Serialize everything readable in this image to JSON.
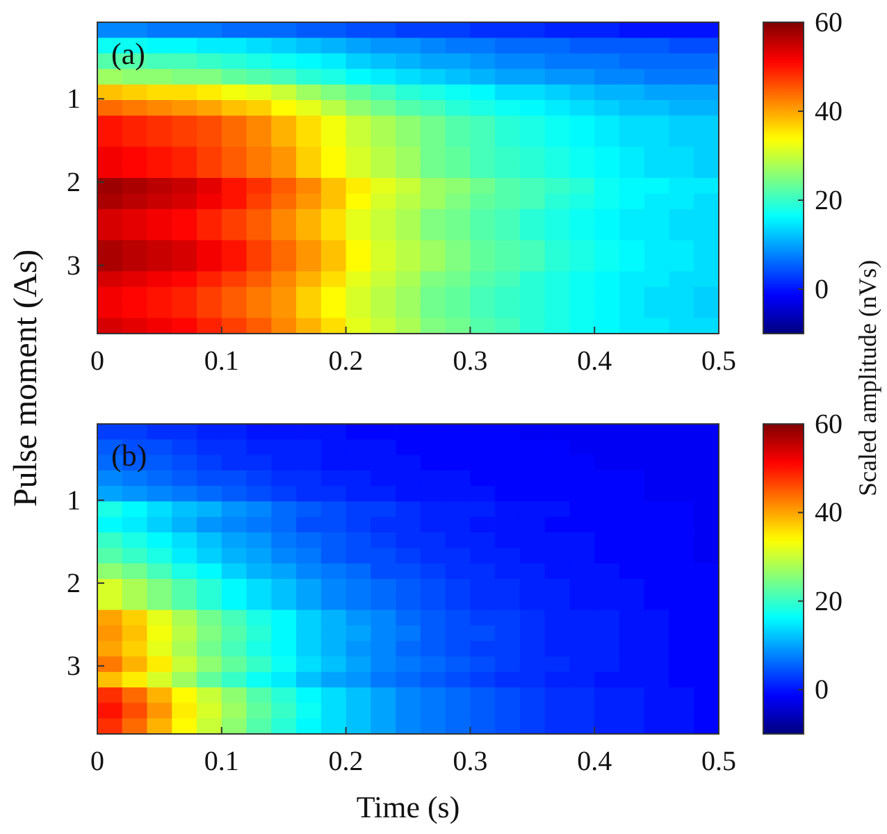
{
  "chart_data": [
    {
      "type": "heatmap",
      "ylabel": "Pulse moment (As)",
      "clabel": "Scaled amplitude (nVs)",
      "annotations": [
        "(a)"
      ],
      "xlim": [
        0,
        0.5
      ],
      "xticks": [
        0,
        0.1,
        0.2,
        0.3,
        0.4,
        0.5
      ],
      "ylim": [
        3.82,
        0.08
      ],
      "yticks": [
        1,
        2,
        3
      ],
      "clim": [
        -10,
        60
      ],
      "cticks": [
        0,
        20,
        40,
        60
      ],
      "cells": [
        [
          8,
          8,
          7,
          7,
          7,
          6,
          6,
          6,
          5,
          5,
          4,
          4,
          3,
          3,
          3,
          2,
          2,
          2,
          1,
          1,
          1,
          0,
          0,
          0,
          0
        ],
        [
          17,
          17,
          16,
          16,
          15,
          15,
          14,
          13,
          12,
          11,
          10,
          9,
          9,
          8,
          7,
          7,
          6,
          6,
          6,
          5,
          5,
          5,
          5,
          4,
          4
        ],
        [
          22,
          22,
          21,
          21,
          20,
          19,
          18,
          17,
          16,
          15,
          13,
          12,
          11,
          10,
          10,
          9,
          8,
          8,
          7,
          7,
          7,
          6,
          6,
          6,
          6
        ],
        [
          27,
          26,
          26,
          25,
          25,
          23,
          22,
          21,
          19,
          18,
          16,
          15,
          14,
          13,
          12,
          11,
          10,
          10,
          9,
          9,
          8,
          8,
          7,
          7,
          7
        ],
        [
          38,
          37,
          36,
          36,
          35,
          33,
          32,
          30,
          27,
          25,
          23,
          21,
          19,
          18,
          17,
          16,
          14,
          14,
          13,
          12,
          11,
          11,
          10,
          10,
          10
        ],
        [
          44,
          43,
          42,
          41,
          40,
          38,
          37,
          34,
          32,
          29,
          26,
          24,
          22,
          21,
          19,
          18,
          17,
          16,
          15,
          14,
          13,
          12,
          12,
          11,
          11
        ],
        [
          50,
          49,
          48,
          47,
          46,
          44,
          42,
          39,
          36,
          33,
          30,
          28,
          26,
          24,
          22,
          21,
          19,
          18,
          17,
          16,
          15,
          14,
          14,
          13,
          13
        ],
        [
          50,
          49,
          48,
          47,
          46,
          44,
          42,
          39,
          36,
          33,
          30,
          28,
          26,
          24,
          22,
          21,
          19,
          18,
          17,
          16,
          15,
          14,
          14,
          13,
          13
        ],
        [
          52,
          51,
          50,
          49,
          47,
          45,
          43,
          41,
          37,
          34,
          31,
          29,
          27,
          24,
          23,
          21,
          20,
          19,
          18,
          17,
          16,
          15,
          14,
          14,
          13
        ],
        [
          52,
          51,
          50,
          49,
          47,
          45,
          43,
          41,
          37,
          34,
          31,
          29,
          27,
          24,
          23,
          21,
          20,
          19,
          18,
          17,
          16,
          15,
          14,
          14,
          13
        ],
        [
          58,
          57,
          56,
          55,
          53,
          50,
          48,
          45,
          42,
          38,
          35,
          32,
          30,
          27,
          26,
          24,
          22,
          21,
          20,
          19,
          17,
          16,
          16,
          15,
          15
        ],
        [
          57,
          56,
          55,
          54,
          52,
          50,
          47,
          44,
          41,
          38,
          34,
          31,
          29,
          27,
          25,
          23,
          22,
          21,
          19,
          18,
          17,
          16,
          15,
          15,
          14
        ],
        [
          54,
          53,
          52,
          51,
          49,
          47,
          45,
          42,
          39,
          36,
          32,
          30,
          28,
          25,
          24,
          22,
          21,
          19,
          18,
          17,
          16,
          15,
          15,
          14,
          14
        ],
        [
          54,
          53,
          52,
          51,
          49,
          47,
          45,
          42,
          39,
          36,
          32,
          30,
          28,
          25,
          24,
          22,
          21,
          19,
          18,
          17,
          16,
          15,
          15,
          14,
          14
        ],
        [
          57,
          56,
          55,
          54,
          52,
          50,
          47,
          44,
          41,
          38,
          34,
          31,
          29,
          27,
          25,
          23,
          22,
          21,
          19,
          18,
          17,
          16,
          15,
          15,
          14
        ],
        [
          57,
          56,
          55,
          54,
          52,
          50,
          47,
          44,
          41,
          38,
          34,
          31,
          29,
          27,
          25,
          23,
          22,
          21,
          19,
          18,
          17,
          16,
          15,
          15,
          14
        ],
        [
          54,
          53,
          52,
          51,
          49,
          47,
          45,
          42,
          39,
          36,
          32,
          30,
          28,
          25,
          24,
          22,
          21,
          19,
          18,
          17,
          16,
          15,
          15,
          14,
          14
        ],
        [
          52,
          51,
          50,
          49,
          47,
          45,
          43,
          41,
          37,
          34,
          31,
          29,
          27,
          24,
          23,
          21,
          20,
          19,
          18,
          17,
          16,
          15,
          14,
          14,
          13
        ],
        [
          52,
          51,
          50,
          49,
          47,
          45,
          43,
          41,
          37,
          34,
          31,
          29,
          27,
          24,
          23,
          21,
          20,
          19,
          18,
          17,
          16,
          15,
          14,
          14,
          13
        ],
        [
          54,
          53,
          52,
          51,
          49,
          47,
          45,
          42,
          39,
          36,
          32,
          30,
          28,
          25,
          24,
          22,
          21,
          19,
          18,
          17,
          16,
          15,
          15,
          14,
          14
        ]
      ]
    },
    {
      "type": "heatmap",
      "xlabel": "Time (s)",
      "annotations": [
        "(b)"
      ],
      "xlim": [
        0,
        0.5
      ],
      "xticks": [
        0,
        0.1,
        0.2,
        0.3,
        0.4,
        0.5
      ],
      "ylim": [
        3.82,
        0.08
      ],
      "yticks": [
        1,
        2,
        3
      ],
      "clim": [
        -10,
        60
      ],
      "cticks": [
        0,
        20,
        40,
        60
      ],
      "cells": [
        [
          3,
          3,
          2,
          2,
          1,
          1,
          0,
          0,
          0,
          0,
          -1,
          -1,
          -1,
          -1,
          -1,
          -1,
          -1,
          -2,
          -2,
          -2,
          -2,
          -2,
          -2,
          -2,
          -2
        ],
        [
          5,
          4,
          4,
          3,
          2,
          2,
          1,
          1,
          1,
          0,
          0,
          0,
          -1,
          -1,
          -1,
          -1,
          -1,
          -1,
          -1,
          -2,
          -2,
          -2,
          -2,
          -2,
          -2
        ],
        [
          6,
          5,
          5,
          4,
          3,
          2,
          2,
          1,
          1,
          0,
          0,
          0,
          0,
          -1,
          -1,
          -1,
          -1,
          -1,
          -1,
          -1,
          -2,
          -2,
          -2,
          -2,
          -2
        ],
        [
          8,
          7,
          6,
          5,
          4,
          4,
          3,
          2,
          2,
          1,
          1,
          0,
          0,
          0,
          0,
          -1,
          -1,
          -1,
          -1,
          -1,
          -1,
          -1,
          -2,
          -2,
          -2
        ],
        [
          10,
          9,
          8,
          7,
          6,
          5,
          4,
          3,
          2,
          2,
          1,
          1,
          0,
          0,
          0,
          0,
          -1,
          -1,
          -1,
          -1,
          -1,
          -1,
          -2,
          -2,
          -2
        ],
        [
          18,
          16,
          14,
          12,
          11,
          9,
          8,
          6,
          5,
          4,
          3,
          3,
          2,
          1,
          1,
          1,
          0,
          0,
          0,
          -1,
          -1,
          -1,
          -1,
          -1,
          -2
        ],
        [
          16,
          15,
          13,
          11,
          9,
          8,
          7,
          6,
          4,
          4,
          3,
          2,
          2,
          1,
          1,
          0,
          0,
          0,
          -1,
          -1,
          -1,
          -1,
          -1,
          -1,
          -2
        ],
        [
          20,
          18,
          16,
          14,
          12,
          10,
          9,
          7,
          6,
          5,
          4,
          3,
          2,
          2,
          1,
          1,
          0,
          0,
          0,
          0,
          -1,
          -1,
          -1,
          -1,
          -2
        ],
        [
          22,
          20,
          18,
          15,
          13,
          11,
          10,
          8,
          7,
          5,
          4,
          4,
          3,
          2,
          2,
          1,
          1,
          0,
          0,
          0,
          -1,
          -1,
          -1,
          -1,
          -2
        ],
        [
          26,
          24,
          21,
          18,
          16,
          13,
          11,
          10,
          8,
          7,
          6,
          4,
          4,
          3,
          2,
          2,
          1,
          1,
          0,
          0,
          0,
          -1,
          -1,
          -1,
          -1
        ],
        [
          31,
          28,
          25,
          22,
          19,
          16,
          14,
          12,
          10,
          8,
          7,
          6,
          5,
          4,
          3,
          2,
          2,
          1,
          1,
          0,
          0,
          0,
          -1,
          -1,
          -1
        ],
        [
          31,
          28,
          25,
          22,
          19,
          16,
          14,
          12,
          10,
          8,
          7,
          6,
          5,
          4,
          3,
          2,
          2,
          1,
          1,
          0,
          0,
          0,
          -1,
          -1,
          -1
        ],
        [
          40,
          37,
          32,
          28,
          24,
          21,
          18,
          16,
          13,
          11,
          9,
          8,
          6,
          5,
          4,
          3,
          3,
          2,
          1,
          1,
          1,
          0,
          0,
          -1,
          -1
        ],
        [
          41,
          38,
          33,
          29,
          25,
          22,
          19,
          16,
          13,
          11,
          10,
          8,
          7,
          5,
          4,
          4,
          3,
          2,
          1,
          1,
          1,
          0,
          0,
          -1,
          -1
        ],
        [
          40,
          37,
          32,
          28,
          24,
          21,
          18,
          16,
          13,
          11,
          9,
          8,
          6,
          5,
          4,
          3,
          3,
          2,
          1,
          1,
          1,
          0,
          0,
          -1,
          -1
        ],
        [
          43,
          39,
          35,
          30,
          26,
          23,
          20,
          17,
          14,
          12,
          10,
          8,
          7,
          6,
          5,
          4,
          3,
          2,
          2,
          1,
          1,
          0,
          0,
          -1,
          -1
        ],
        [
          38,
          35,
          31,
          27,
          23,
          20,
          17,
          15,
          12,
          10,
          9,
          7,
          6,
          5,
          4,
          3,
          2,
          2,
          1,
          1,
          0,
          0,
          0,
          -1,
          -1
        ],
        [
          48,
          44,
          39,
          34,
          30,
          26,
          22,
          19,
          16,
          14,
          12,
          10,
          8,
          7,
          6,
          5,
          4,
          3,
          2,
          2,
          1,
          1,
          0,
          0,
          -1
        ],
        [
          50,
          46,
          41,
          35,
          31,
          27,
          23,
          20,
          17,
          14,
          12,
          10,
          8,
          7,
          6,
          5,
          4,
          3,
          2,
          2,
          1,
          1,
          0,
          0,
          -1
        ],
        [
          48,
          44,
          39,
          34,
          30,
          26,
          22,
          19,
          16,
          14,
          12,
          10,
          8,
          7,
          6,
          5,
          4,
          3,
          2,
          2,
          1,
          1,
          0,
          0,
          -1
        ]
      ]
    }
  ]
}
